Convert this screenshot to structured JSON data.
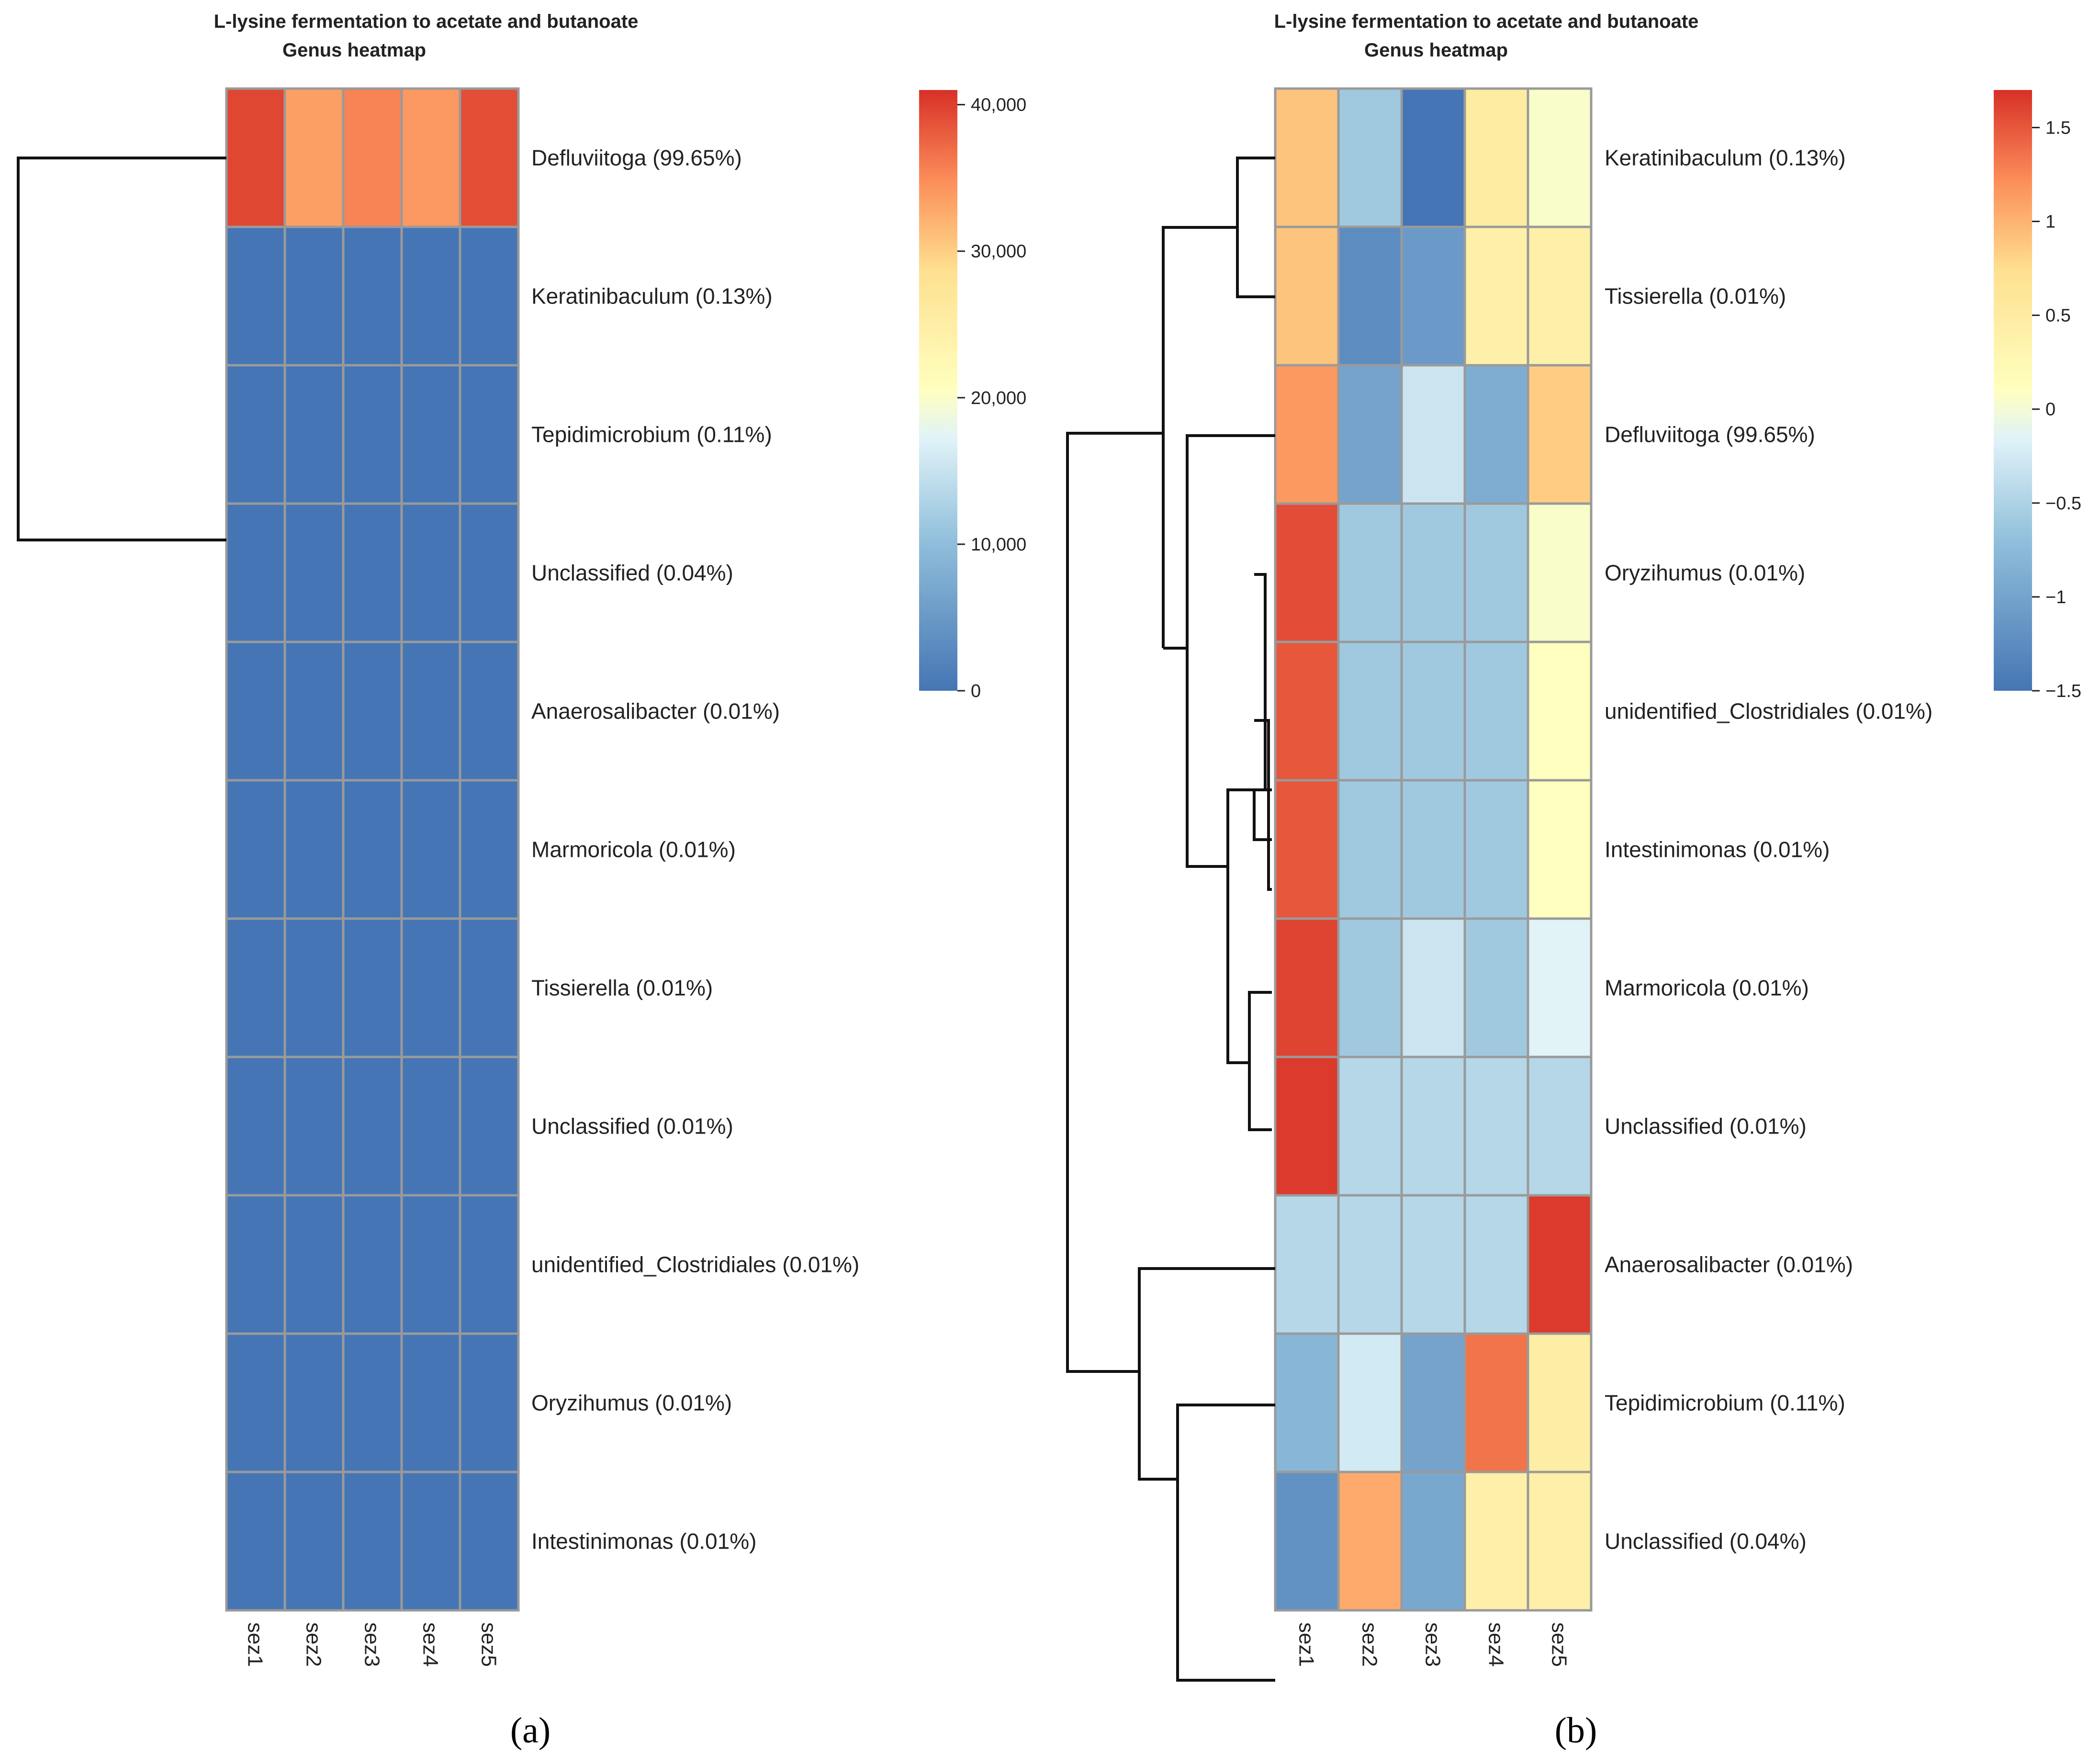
{
  "chart_data": [
    {
      "type": "heatmap",
      "panel_label": "(a)",
      "title": "L-lysine fermentation to acetate and butanoate",
      "subtitle": "Genus heatmap",
      "columns": [
        "sez1",
        "sez2",
        "sez3",
        "sez4",
        "sez5"
      ],
      "rows": [
        "Defluviitoga (99.65%)",
        "Keratinibaculum (0.13%)",
        "Tepidimicrobium (0.11%)",
        "Unclassified (0.04%)",
        "Anaerosalibacter (0.01%)",
        "Marmoricola (0.01%)",
        "Tissierella (0.01%)",
        "Unclassified (0.01%)",
        "unidentified_Clostridiales (0.01%)",
        "Oryzihumus (0.01%)",
        "Intestinimonas (0.01%)"
      ],
      "values": [
        [
          39500,
          33500,
          35500,
          34000,
          39000
        ],
        [
          50,
          50,
          50,
          50,
          50
        ],
        [
          45,
          45,
          45,
          45,
          45
        ],
        [
          15,
          15,
          15,
          15,
          15
        ],
        [
          5,
          5,
          5,
          5,
          5
        ],
        [
          5,
          5,
          5,
          5,
          5
        ],
        [
          5,
          5,
          5,
          5,
          5
        ],
        [
          5,
          5,
          5,
          5,
          5
        ],
        [
          5,
          5,
          5,
          5,
          5
        ],
        [
          5,
          5,
          5,
          5,
          5
        ],
        [
          5,
          5,
          5,
          5,
          5
        ]
      ],
      "colorbar": {
        "min": 0,
        "max": 41000,
        "ticks": [
          0,
          10000,
          20000,
          30000,
          40000
        ],
        "tick_labels": [
          "0",
          "10,000",
          "20,000",
          "30,000",
          "40,000"
        ]
      },
      "dendrogram": {
        "side": "left",
        "merges": [
          [
            0,
            1,
            2.0
          ]
        ],
        "leaf_groups": [
          [
            0
          ],
          [
            1,
            2,
            3,
            4,
            5,
            6,
            7,
            8,
            9,
            10
          ]
        ]
      }
    },
    {
      "type": "heatmap",
      "panel_label": "(b)",
      "title": "L-lysine fermentation to acetate and butanoate",
      "subtitle": "Genus heatmap",
      "columns": [
        "sez1",
        "sez2",
        "sez3",
        "sez4",
        "sez5"
      ],
      "rows": [
        "Keratinibaculum (0.13%)",
        "Tissierella (0.01%)",
        "Defluviitoga (99.65%)",
        "Oryzihumus (0.01%)",
        "unidentified_Clostridiales (0.01%)",
        "Intestinimonas (0.01%)",
        "Marmoricola (0.01%)",
        "Unclassified (0.01%)",
        "Anaerosalibacter (0.01%)",
        "Tepidimicrobium (0.11%)",
        "Unclassified (0.04%)"
      ],
      "values": [
        [
          0.9,
          -0.6,
          -1.5,
          0.5,
          0.05
        ],
        [
          0.9,
          -1.25,
          -1.1,
          0.4,
          0.4
        ],
        [
          1.15,
          -1.0,
          -0.3,
          -0.9,
          0.85
        ],
        [
          1.55,
          -0.6,
          -0.6,
          -0.6,
          0.05
        ],
        [
          1.5,
          -0.6,
          -0.6,
          -0.6,
          0.1
        ],
        [
          1.5,
          -0.6,
          -0.6,
          -0.6,
          0.1
        ],
        [
          1.6,
          -0.6,
          -0.3,
          -0.6,
          -0.15
        ],
        [
          1.65,
          -0.45,
          -0.45,
          -0.45,
          -0.45
        ],
        [
          -0.45,
          -0.45,
          -0.45,
          -0.45,
          1.65
        ],
        [
          -0.8,
          -0.25,
          -1.0,
          1.35,
          0.45
        ],
        [
          -1.2,
          1.05,
          -0.95,
          0.4,
          0.4
        ]
      ],
      "colorbar": {
        "min": -1.5,
        "max": 1.7,
        "ticks": [
          1.5,
          1,
          0.5,
          0,
          -0.5,
          -1,
          -1.5
        ],
        "tick_labels": [
          "1.5",
          "1",
          "0.5",
          "0",
          "−0.5",
          "−1",
          "−1.5"
        ]
      },
      "dendrogram": {
        "side": "left"
      }
    }
  ]
}
